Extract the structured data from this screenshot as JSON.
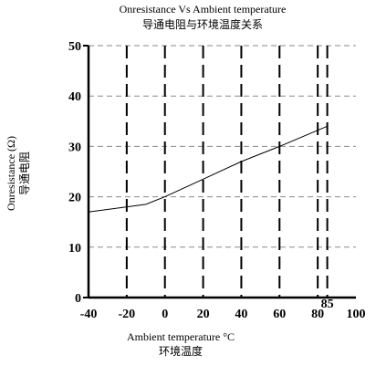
{
  "chart_data": {
    "type": "line",
    "title": "Onresistance Vs Ambient temperature",
    "subtitle": "导通电阻与环境温度关系",
    "xlabel": "Ambient temperature °C",
    "xlabel_cn": "环境温度",
    "ylabel": "Onresistance (Ω)",
    "ylabel_cn": "导通电阻",
    "xlim": [
      -40,
      100
    ],
    "ylim": [
      0,
      50
    ],
    "x_ticks": [
      -40,
      -20,
      0,
      20,
      40,
      60,
      80,
      100
    ],
    "x_tick_labels": [
      "-40",
      "-20",
      "0",
      "20",
      "40",
      "60",
      "80",
      "100"
    ],
    "y_ticks": [
      0,
      10,
      20,
      30,
      40,
      50
    ],
    "y_tick_labels": [
      "0",
      "10",
      "20",
      "30",
      "40",
      "50"
    ],
    "x_annotation": "85",
    "x_annotation_value": 85,
    "grid": true,
    "series": [
      {
        "x": [
          -40,
          -10,
          0,
          20,
          40,
          60,
          85
        ],
        "y": [
          17,
          18.5,
          20,
          23.5,
          27,
          30,
          34
        ]
      }
    ]
  }
}
